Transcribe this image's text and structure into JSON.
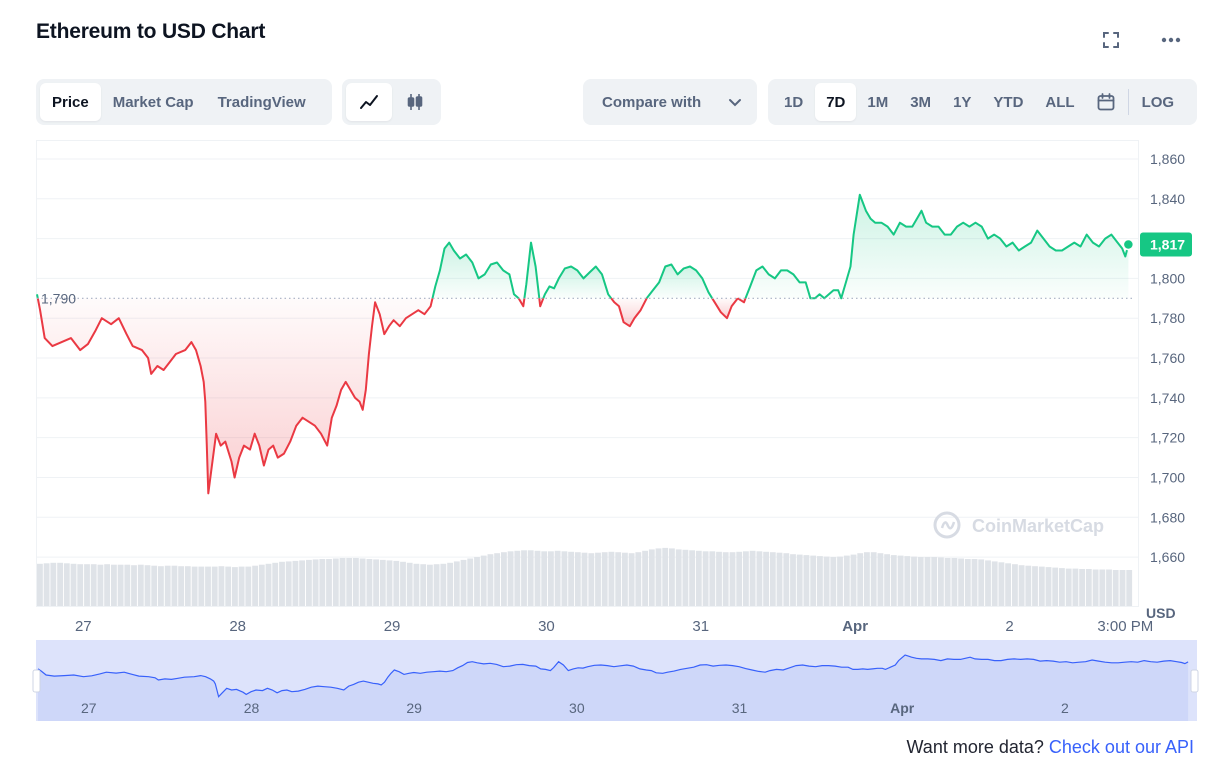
{
  "header": {
    "title": "Ethereum to USD Chart",
    "fullscreen_icon": "fullscreen-icon",
    "more_icon": "more-horizontal-icon"
  },
  "toolbar": {
    "data_tabs": [
      "Price",
      "Market Cap",
      "TradingView"
    ],
    "active_data_tab": "Price",
    "chart_styles": [
      "line-chart-icon",
      "candlestick-icon"
    ],
    "active_chart_style": "line-chart-icon",
    "compare_label": "Compare with",
    "ranges": [
      "1D",
      "7D",
      "1M",
      "3M",
      "1Y",
      "YTD",
      "ALL"
    ],
    "active_range": "7D",
    "calendar_icon": "calendar-icon",
    "log_label": "LOG"
  },
  "chart_data": {
    "type": "line",
    "y_axis": {
      "unit_label": "USD",
      "ticks": [
        1660,
        1680,
        1700,
        1720,
        1740,
        1760,
        1780,
        1800,
        1820,
        1840,
        1860
      ],
      "tick_labels": [
        "1,660",
        "1,680",
        "1,700",
        "1,720",
        "1,740",
        "1,760",
        "1,780",
        "1,800",
        "1,820",
        "1,840",
        "1,860"
      ],
      "range": [
        1650,
        1865
      ]
    },
    "x_axis": {
      "tick_labels": [
        "27",
        "28",
        "29",
        "30",
        "31",
        "Apr",
        "2",
        "3:00 PM"
      ],
      "tick_days": [
        0.3,
        1.3,
        2.3,
        3.3,
        4.3,
        5.3,
        6.3,
        7.05
      ],
      "range_days": [
        0,
        7.1
      ]
    },
    "reference": {
      "value": 1790,
      "label": "1,790"
    },
    "current": {
      "value": 1817,
      "label": "1,817"
    },
    "colors": {
      "up": "#16c784",
      "down": "#ea3943",
      "current_badge": "#16c784",
      "navigator_line": "#3861fb",
      "navigator_fill": "#dde3fb"
    },
    "price_points": [
      [
        0.0,
        1792
      ],
      [
        0.02,
        1784
      ],
      [
        0.05,
        1770
      ],
      [
        0.1,
        1766
      ],
      [
        0.16,
        1768
      ],
      [
        0.22,
        1770
      ],
      [
        0.28,
        1764
      ],
      [
        0.33,
        1767
      ],
      [
        0.38,
        1774
      ],
      [
        0.42,
        1780
      ],
      [
        0.48,
        1777
      ],
      [
        0.53,
        1780
      ],
      [
        0.58,
        1772
      ],
      [
        0.62,
        1766
      ],
      [
        0.68,
        1764
      ],
      [
        0.72,
        1760
      ],
      [
        0.74,
        1752
      ],
      [
        0.78,
        1756
      ],
      [
        0.82,
        1754
      ],
      [
        0.86,
        1758
      ],
      [
        0.9,
        1762
      ],
      [
        0.96,
        1764
      ],
      [
        1.0,
        1768
      ],
      [
        1.03,
        1764
      ],
      [
        1.06,
        1756
      ],
      [
        1.08,
        1748
      ],
      [
        1.09,
        1738
      ],
      [
        1.1,
        1716
      ],
      [
        1.11,
        1692
      ],
      [
        1.13,
        1704
      ],
      [
        1.16,
        1722
      ],
      [
        1.19,
        1716
      ],
      [
        1.22,
        1718
      ],
      [
        1.26,
        1708
      ],
      [
        1.28,
        1700
      ],
      [
        1.31,
        1710
      ],
      [
        1.34,
        1716
      ],
      [
        1.38,
        1714
      ],
      [
        1.41,
        1722
      ],
      [
        1.44,
        1716
      ],
      [
        1.47,
        1706
      ],
      [
        1.5,
        1714
      ],
      [
        1.53,
        1716
      ],
      [
        1.56,
        1710
      ],
      [
        1.6,
        1712
      ],
      [
        1.64,
        1718
      ],
      [
        1.68,
        1726
      ],
      [
        1.72,
        1730
      ],
      [
        1.76,
        1728
      ],
      [
        1.8,
        1726
      ],
      [
        1.84,
        1722
      ],
      [
        1.88,
        1716
      ],
      [
        1.91,
        1730
      ],
      [
        1.94,
        1736
      ],
      [
        1.97,
        1744
      ],
      [
        2.0,
        1748
      ],
      [
        2.03,
        1744
      ],
      [
        2.06,
        1740
      ],
      [
        2.09,
        1738
      ],
      [
        2.11,
        1734
      ],
      [
        2.13,
        1744
      ],
      [
        2.15,
        1762
      ],
      [
        2.17,
        1776
      ],
      [
        2.19,
        1788
      ],
      [
        2.22,
        1782
      ],
      [
        2.25,
        1772
      ],
      [
        2.28,
        1776
      ],
      [
        2.31,
        1779
      ],
      [
        2.35,
        1776
      ],
      [
        2.39,
        1780
      ],
      [
        2.43,
        1782
      ],
      [
        2.47,
        1784
      ],
      [
        2.51,
        1782
      ],
      [
        2.55,
        1786
      ],
      [
        2.58,
        1796
      ],
      [
        2.61,
        1804
      ],
      [
        2.64,
        1815
      ],
      [
        2.67,
        1818
      ],
      [
        2.7,
        1814
      ],
      [
        2.74,
        1810
      ],
      [
        2.78,
        1812
      ],
      [
        2.82,
        1808
      ],
      [
        2.86,
        1800
      ],
      [
        2.9,
        1802
      ],
      [
        2.94,
        1807
      ],
      [
        2.98,
        1808
      ],
      [
        3.02,
        1804
      ],
      [
        3.06,
        1802
      ],
      [
        3.09,
        1792
      ],
      [
        3.12,
        1790
      ],
      [
        3.15,
        1786
      ],
      [
        3.17,
        1797
      ],
      [
        3.2,
        1818
      ],
      [
        3.23,
        1806
      ],
      [
        3.26,
        1786
      ],
      [
        3.29,
        1792
      ],
      [
        3.32,
        1796
      ],
      [
        3.35,
        1795
      ],
      [
        3.38,
        1800
      ],
      [
        3.42,
        1805
      ],
      [
        3.46,
        1806
      ],
      [
        3.5,
        1804
      ],
      [
        3.54,
        1800
      ],
      [
        3.58,
        1803
      ],
      [
        3.62,
        1806
      ],
      [
        3.66,
        1802
      ],
      [
        3.7,
        1792
      ],
      [
        3.74,
        1788
      ],
      [
        3.77,
        1786
      ],
      [
        3.8,
        1778
      ],
      [
        3.84,
        1776
      ],
      [
        3.87,
        1780
      ],
      [
        3.91,
        1784
      ],
      [
        3.95,
        1790
      ],
      [
        3.99,
        1794
      ],
      [
        4.03,
        1798
      ],
      [
        4.07,
        1806
      ],
      [
        4.11,
        1807
      ],
      [
        4.15,
        1802
      ],
      [
        4.19,
        1805
      ],
      [
        4.23,
        1806
      ],
      [
        4.27,
        1804
      ],
      [
        4.31,
        1800
      ],
      [
        4.35,
        1793
      ],
      [
        4.39,
        1788
      ],
      [
        4.43,
        1783
      ],
      [
        4.47,
        1780
      ],
      [
        4.5,
        1786
      ],
      [
        4.54,
        1790
      ],
      [
        4.58,
        1788
      ],
      [
        4.62,
        1796
      ],
      [
        4.66,
        1804
      ],
      [
        4.7,
        1806
      ],
      [
        4.74,
        1802
      ],
      [
        4.78,
        1800
      ],
      [
        4.82,
        1804
      ],
      [
        4.86,
        1804
      ],
      [
        4.9,
        1802
      ],
      [
        4.94,
        1798
      ],
      [
        4.98,
        1798
      ],
      [
        5.01,
        1790
      ],
      [
        5.04,
        1790
      ],
      [
        5.07,
        1792
      ],
      [
        5.1,
        1790
      ],
      [
        5.13,
        1792
      ],
      [
        5.16,
        1794
      ],
      [
        5.19,
        1794
      ],
      [
        5.21,
        1790
      ],
      [
        5.24,
        1798
      ],
      [
        5.27,
        1806
      ],
      [
        5.29,
        1822
      ],
      [
        5.31,
        1832
      ],
      [
        5.33,
        1842
      ],
      [
        5.35,
        1838
      ],
      [
        5.37,
        1834
      ],
      [
        5.4,
        1830
      ],
      [
        5.43,
        1828
      ],
      [
        5.47,
        1828
      ],
      [
        5.51,
        1826
      ],
      [
        5.55,
        1822
      ],
      [
        5.59,
        1828
      ],
      [
        5.63,
        1826
      ],
      [
        5.67,
        1826
      ],
      [
        5.7,
        1830
      ],
      [
        5.73,
        1834
      ],
      [
        5.76,
        1828
      ],
      [
        5.8,
        1826
      ],
      [
        5.84,
        1826
      ],
      [
        5.88,
        1822
      ],
      [
        5.92,
        1822
      ],
      [
        5.96,
        1826
      ],
      [
        6.0,
        1828
      ],
      [
        6.04,
        1826
      ],
      [
        6.08,
        1828
      ],
      [
        6.12,
        1826
      ],
      [
        6.16,
        1820
      ],
      [
        6.2,
        1822
      ],
      [
        6.24,
        1820
      ],
      [
        6.28,
        1816
      ],
      [
        6.32,
        1818
      ],
      [
        6.36,
        1814
      ],
      [
        6.4,
        1816
      ],
      [
        6.44,
        1818
      ],
      [
        6.48,
        1824
      ],
      [
        6.52,
        1820
      ],
      [
        6.56,
        1816
      ],
      [
        6.6,
        1814
      ],
      [
        6.64,
        1814
      ],
      [
        6.68,
        1816
      ],
      [
        6.72,
        1818
      ],
      [
        6.76,
        1816
      ],
      [
        6.8,
        1822
      ],
      [
        6.84,
        1818
      ],
      [
        6.88,
        1816
      ],
      [
        6.92,
        1820
      ],
      [
        6.96,
        1822
      ],
      [
        7.0,
        1818
      ],
      [
        7.03,
        1815
      ],
      [
        7.05,
        1811
      ],
      [
        7.07,
        1817
      ]
    ],
    "volume_relative": [
      0.88,
      0.89,
      0.9,
      0.9,
      0.89,
      0.88,
      0.87,
      0.87,
      0.87,
      0.86,
      0.87,
      0.86,
      0.86,
      0.86,
      0.85,
      0.86,
      0.85,
      0.84,
      0.83,
      0.84,
      0.84,
      0.83,
      0.83,
      0.82,
      0.82,
      0.82,
      0.82,
      0.83,
      0.82,
      0.81,
      0.82,
      0.82,
      0.84,
      0.86,
      0.88,
      0.9,
      0.92,
      0.93,
      0.94,
      0.95,
      0.96,
      0.97,
      0.98,
      0.98,
      0.99,
      1.0,
      1.0,
      1.0,
      0.99,
      0.98,
      0.97,
      0.96,
      0.95,
      0.94,
      0.92,
      0.9,
      0.88,
      0.87,
      0.86,
      0.87,
      0.88,
      0.9,
      0.93,
      0.96,
      0.99,
      1.02,
      1.05,
      1.08,
      1.1,
      1.12,
      1.14,
      1.15,
      1.16,
      1.16,
      1.15,
      1.14,
      1.14,
      1.15,
      1.14,
      1.13,
      1.12,
      1.11,
      1.1,
      1.11,
      1.12,
      1.13,
      1.12,
      1.11,
      1.1,
      1.12,
      1.15,
      1.18,
      1.2,
      1.21,
      1.2,
      1.18,
      1.17,
      1.16,
      1.15,
      1.14,
      1.14,
      1.13,
      1.12,
      1.12,
      1.13,
      1.14,
      1.15,
      1.14,
      1.13,
      1.12,
      1.11,
      1.1,
      1.08,
      1.07,
      1.06,
      1.05,
      1.04,
      1.03,
      1.02,
      1.03,
      1.05,
      1.07,
      1.1,
      1.12,
      1.12,
      1.1,
      1.08,
      1.06,
      1.05,
      1.04,
      1.03,
      1.02,
      1.02,
      1.02,
      1.01,
      1.0,
      1.0,
      0.99,
      0.98,
      0.98,
      0.97,
      0.95,
      0.93,
      0.91,
      0.89,
      0.87,
      0.85,
      0.84,
      0.83,
      0.82,
      0.81,
      0.8,
      0.79,
      0.78,
      0.78,
      0.77,
      0.77,
      0.76,
      0.76,
      0.76,
      0.75,
      0.75,
      0.75
    ]
  },
  "navigator": {
    "tick_labels": [
      "27",
      "28",
      "29",
      "30",
      "31",
      "Apr",
      "2"
    ]
  },
  "branding": {
    "watermark": "CoinMarketCap"
  },
  "footer": {
    "prefix": "Want more data?",
    "link": "Check out our API"
  }
}
